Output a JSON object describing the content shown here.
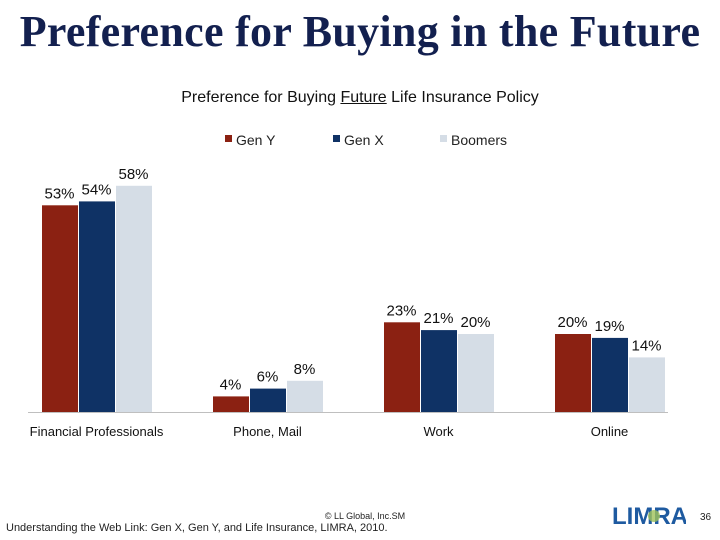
{
  "slide": {
    "title": "Preference for Buying in the Future",
    "page_number": "36",
    "copyright": "© LL Global, Inc.SM",
    "source": "Understanding the Web Link: Gen X, Gen Y, and Life Insurance, LIMRA, 2010.",
    "logo_text": "LIMRA"
  },
  "chart_title": {
    "pre": "Preference for Buying ",
    "underlined": "Future",
    "post": " Life Insurance Policy"
  },
  "chart_data": {
    "type": "bar",
    "title": "Preference for Buying Future Life Insurance Policy",
    "categories": [
      "Financial Professionals",
      "Phone, Mail",
      "Work",
      "Online"
    ],
    "series": [
      {
        "name": "Gen Y",
        "color": "#8b2112",
        "values": [
          53,
          4,
          23,
          20
        ]
      },
      {
        "name": "Gen X",
        "color": "#0f3265",
        "values": [
          54,
          6,
          21,
          19
        ]
      },
      {
        "name": "Boomers",
        "color": "#d5dde6",
        "values": [
          58,
          8,
          20,
          14
        ]
      }
    ],
    "value_suffix": "%",
    "ylim": [
      0,
      60
    ],
    "grid": false,
    "legend": "top",
    "xlabel": "",
    "ylabel": ""
  }
}
